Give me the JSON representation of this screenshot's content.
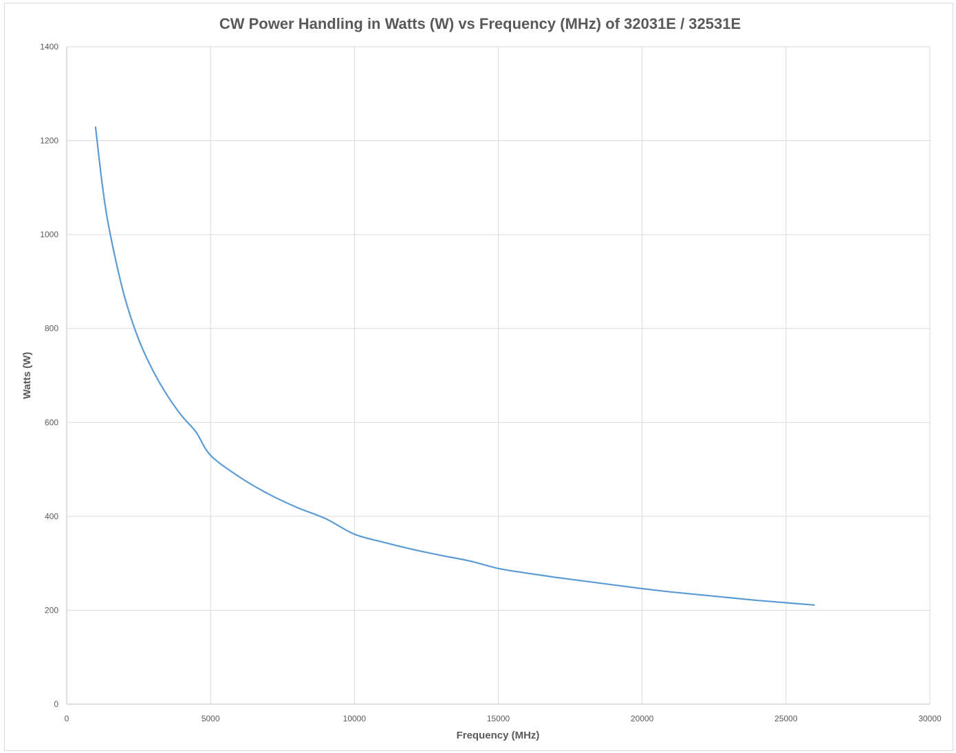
{
  "chart_data": {
    "type": "line",
    "title": "CW Power Handling in Watts (W) vs Frequency (MHz) of 32031E / 32531E",
    "xlabel": "Frequency (MHz)",
    "ylabel": "Watts (W)",
    "xlim": [
      0,
      30000
    ],
    "ylim": [
      0,
      1400
    ],
    "x_ticks": [
      0,
      5000,
      10000,
      15000,
      20000,
      25000,
      30000
    ],
    "y_ticks": [
      0,
      200,
      400,
      600,
      800,
      1000,
      1200,
      1400
    ],
    "grid": true,
    "legend": "none",
    "series_color": "#5b9bd5",
    "series": [
      {
        "x": [
          1000,
          1250,
          1500,
          2000,
          2500,
          3000,
          3500,
          4000,
          4500,
          5000,
          6000,
          7000,
          8000,
          9000,
          10000,
          11000,
          12000,
          13000,
          14000,
          15000,
          16000,
          17000,
          18000,
          19000,
          20000,
          21000,
          22000,
          23000,
          24000,
          25000,
          26000
        ],
        "y": [
          1230,
          1100,
          1005,
          870,
          777,
          710,
          657,
          614,
          579,
          530,
          484,
          448,
          419,
          395,
          362,
          345,
          330,
          317,
          305,
          289,
          279,
          270,
          262,
          254,
          246,
          239,
          233,
          227,
          221,
          216,
          211
        ]
      }
    ]
  }
}
